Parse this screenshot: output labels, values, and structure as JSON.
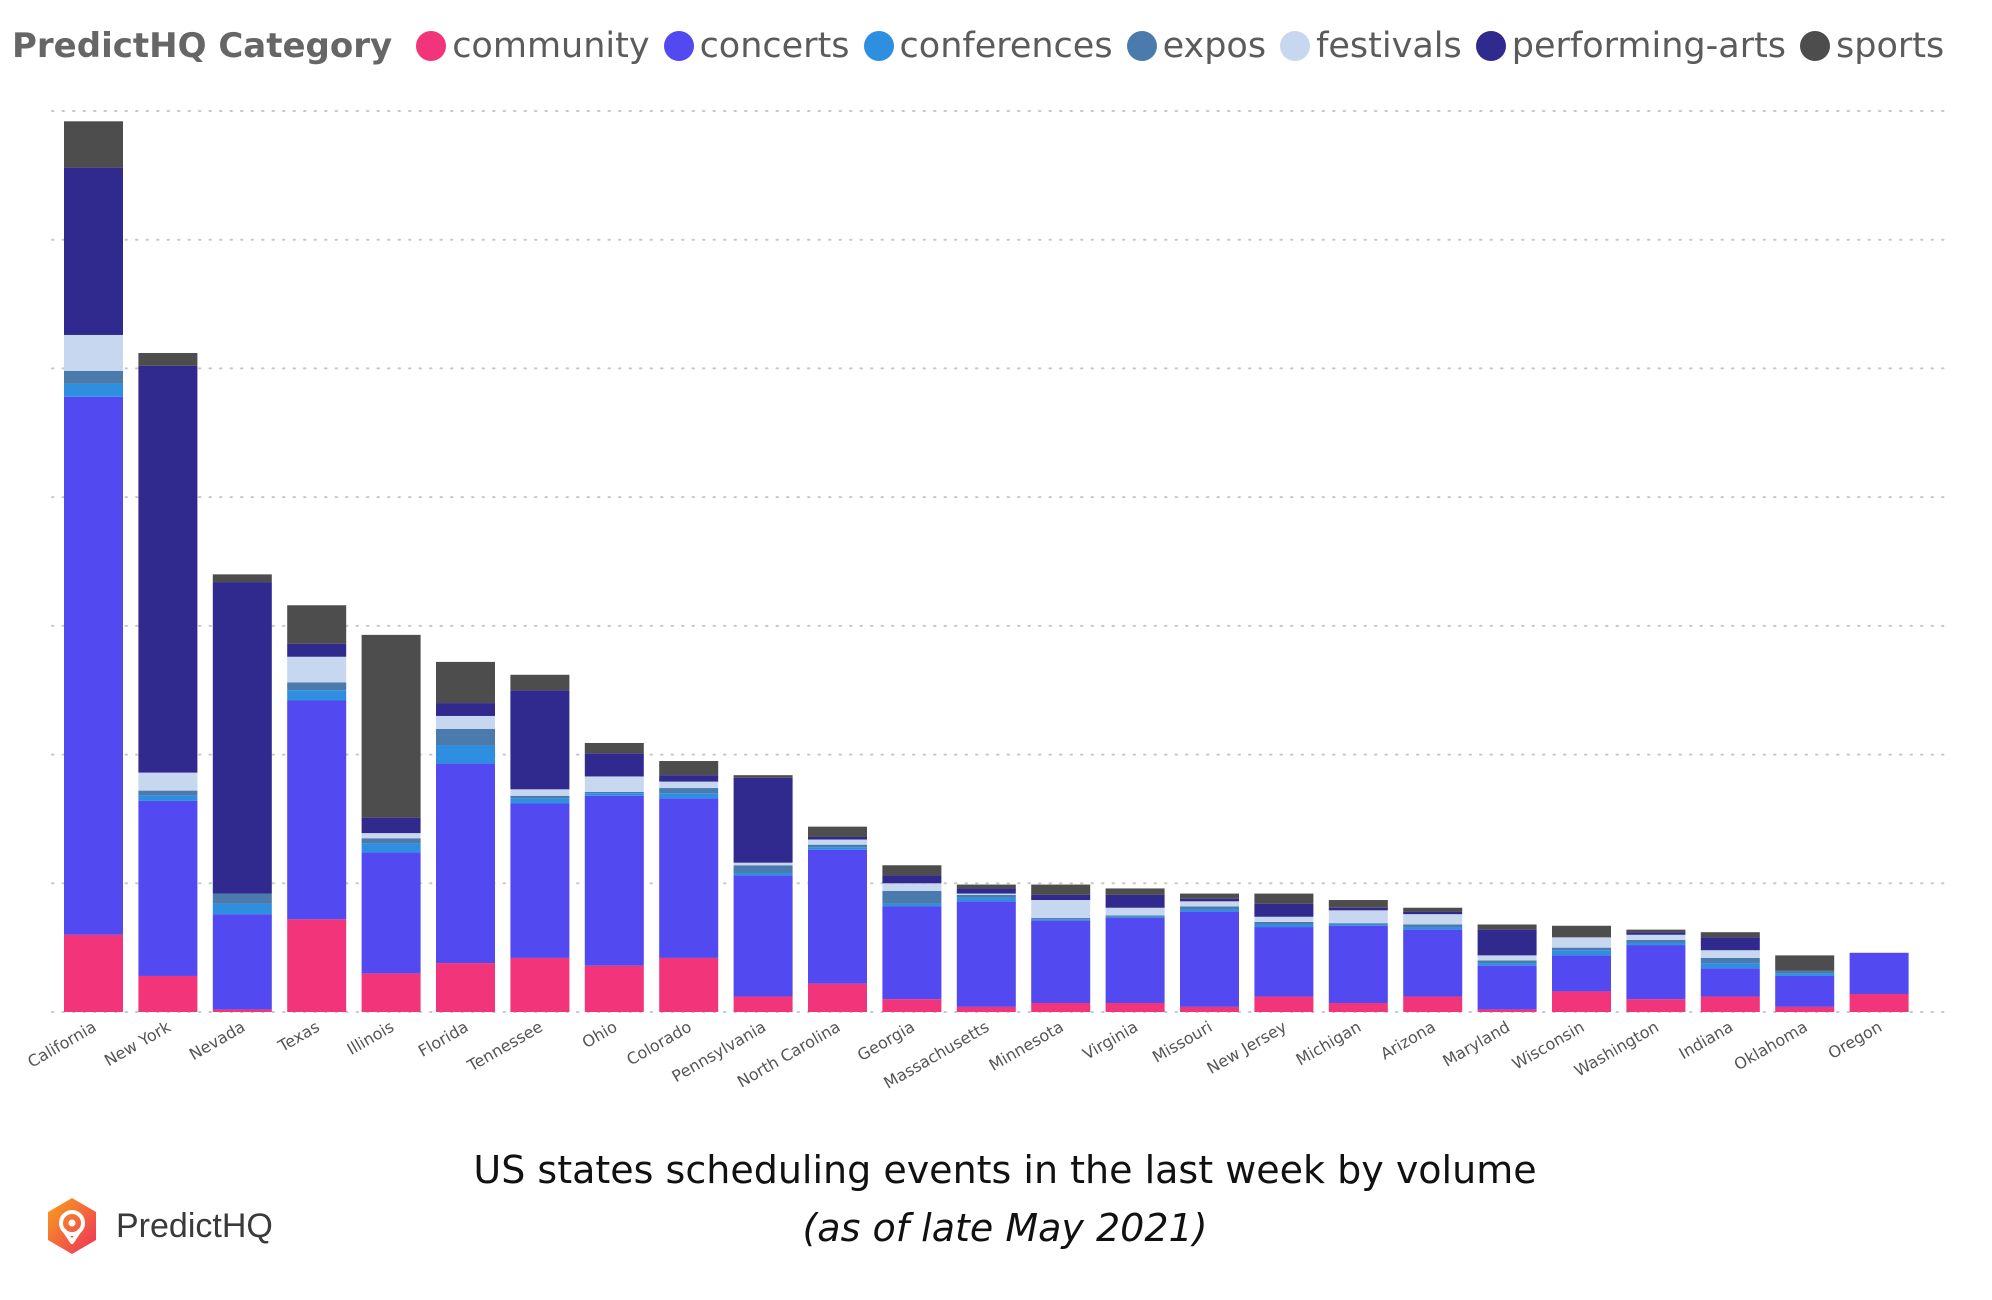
{
  "legend_title": "PredictHQ Category",
  "caption": {
    "title": "US states scheduling events in the last week by volume",
    "subtitle": "(as of late May 2021)"
  },
  "brand": {
    "name": "PredictHQ",
    "logo_colors": [
      "#f7a21b",
      "#ee2f5b"
    ]
  },
  "chart_data": {
    "type": "bar",
    "stacked": true,
    "title": "",
    "xlabel": "",
    "ylabel": "",
    "ylim": [
      0,
      700
    ],
    "grid": true,
    "legend_position": "top",
    "categories": [
      "California",
      "New York",
      "Nevada",
      "Texas",
      "Illinois",
      "Florida",
      "Tennessee",
      "Ohio",
      "Colorado",
      "Pennsylvania",
      "North Carolina",
      "Georgia",
      "Massachusetts",
      "Minnesota",
      "Virginia",
      "Missouri",
      "New Jersey",
      "Michigan",
      "Arizona",
      "Maryland",
      "Wisconsin",
      "Washington",
      "Indiana",
      "Oklahoma",
      "Oregon"
    ],
    "series": [
      {
        "name": "community",
        "color": "#f2347a",
        "values": [
          60,
          28,
          2,
          72,
          30,
          38,
          42,
          36,
          42,
          12,
          22,
          10,
          4,
          7,
          7,
          4,
          12,
          7,
          12,
          2,
          16,
          10,
          12,
          4,
          14
        ]
      },
      {
        "name": "concerts",
        "color": "#5249f0",
        "values": [
          418,
          136,
          74,
          170,
          94,
          155,
          120,
          132,
          124,
          94,
          104,
          72,
          82,
          64,
          66,
          74,
          54,
          60,
          52,
          34,
          28,
          42,
          22,
          24,
          32
        ]
      },
      {
        "name": "conferences",
        "color": "#2e8fe0",
        "values": [
          10,
          4,
          8,
          8,
          7,
          14,
          4,
          2,
          4,
          2,
          2,
          2,
          3,
          1,
          1,
          2,
          2,
          1,
          2,
          2,
          4,
          2,
          4,
          2,
          0
        ]
      },
      {
        "name": "expos",
        "color": "#4b7bad",
        "values": [
          10,
          4,
          8,
          6,
          4,
          13,
          2,
          1,
          4,
          6,
          2,
          10,
          2,
          1,
          1,
          2,
          2,
          1,
          2,
          2,
          2,
          2,
          4,
          2,
          0
        ]
      },
      {
        "name": "festivals",
        "color": "#c6d7ef",
        "values": [
          28,
          14,
          0,
          20,
          4,
          10,
          5,
          12,
          5,
          2,
          4,
          6,
          1,
          14,
          6,
          4,
          4,
          10,
          8,
          4,
          8,
          4,
          6,
          0,
          0
        ]
      },
      {
        "name": "performing-arts",
        "color": "#312a8e",
        "values": [
          130,
          316,
          242,
          10,
          12,
          10,
          77,
          18,
          5,
          66,
          2,
          6,
          4,
          4,
          10,
          2,
          10,
          2,
          2,
          20,
          0,
          2,
          10,
          0,
          0
        ]
      },
      {
        "name": "sports",
        "color": "#4d4d4d",
        "values": [
          36,
          10,
          6,
          30,
          142,
          32,
          12,
          8,
          11,
          2,
          8,
          8,
          3,
          8,
          5,
          4,
          8,
          6,
          3,
          4,
          9,
          2,
          4,
          12,
          0
        ]
      }
    ]
  }
}
